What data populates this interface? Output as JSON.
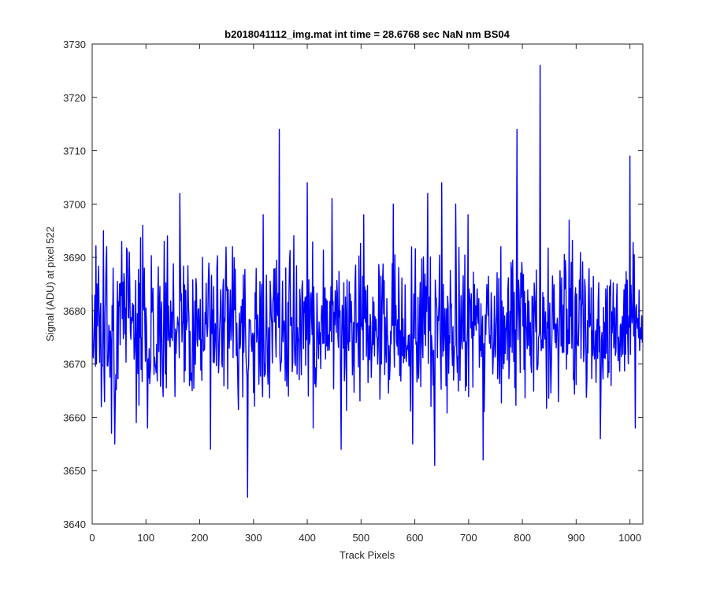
{
  "chart_data": {
    "type": "line",
    "title": "b2018041112_img.mat int time = 28.6768 sec  NaN nm BS04",
    "xlabel": "Track Pixels",
    "ylabel": "Signal (ADU) at pixel 522",
    "xlim": [
      0,
      1024
    ],
    "ylim": [
      3640,
      3730
    ],
    "xticks": [
      0,
      100,
      200,
      300,
      400,
      500,
      600,
      700,
      800,
      900,
      1000
    ],
    "yticks": [
      3640,
      3650,
      3660,
      3670,
      3680,
      3690,
      3700,
      3710,
      3720,
      3730
    ],
    "grid": false,
    "legend": "none",
    "series": [
      {
        "color": "#0000ff",
        "n_points": 1024,
        "baseline": 3677,
        "noise_amplitude": 15,
        "x": [
          0,
          8,
          17,
          21,
          27,
          36,
          42,
          55,
          82,
          94,
          103,
          140,
          163,
          205,
          220,
          261,
          289,
          318,
          348,
          400,
          411,
          446,
          463,
          505,
          560,
          596,
          624,
          637,
          650,
          676,
          699,
          727,
          760,
          790,
          833,
          887,
          945,
          1000,
          1010,
          1023
        ],
        "y": [
          3683,
          3670,
          3662,
          3695,
          3692,
          3657,
          3655,
          3693,
          3659,
          3696,
          3658,
          3694,
          3702,
          3690,
          3654,
          3692,
          3645,
          3698,
          3714,
          3704,
          3658,
          3701,
          3654,
          3698,
          3700,
          3655,
          3702,
          3651,
          3704,
          3700,
          3698,
          3652,
          3692,
          3714,
          3726,
          3697,
          3656,
          3709,
          3658,
          3674
        ]
      }
    ]
  }
}
